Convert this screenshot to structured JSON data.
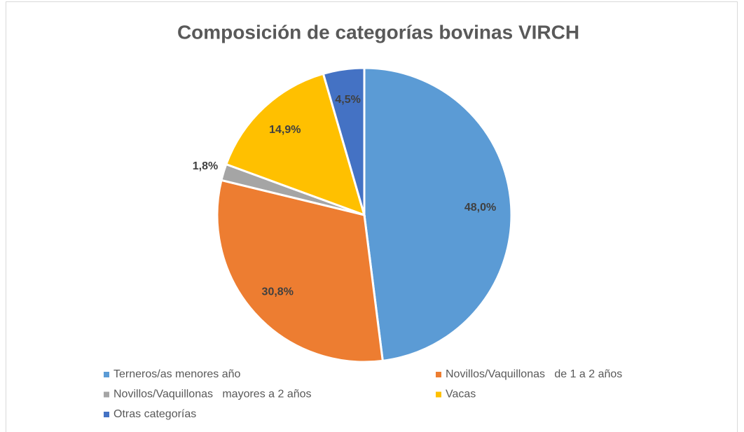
{
  "chart_data": {
    "type": "pie",
    "title": "Composición de categorías bovinas VIRCH",
    "categories": [
      "Terneros/as menores año",
      "Novillos/Vaquillonas   de 1 a 2 años",
      "Novillos/Vaquillonas   mayores a 2 años",
      "Vacas",
      "Otras categorías"
    ],
    "values": [
      48.0,
      30.8,
      1.8,
      14.9,
      4.5
    ],
    "value_labels": [
      "48,0%",
      "30,8%",
      "1,8%",
      "14,9%",
      "4,5%"
    ],
    "colors": [
      "#5b9bd5",
      "#ed7d31",
      "#a5a5a5",
      "#ffc000",
      "#4472c4"
    ],
    "legend": "bottom"
  }
}
